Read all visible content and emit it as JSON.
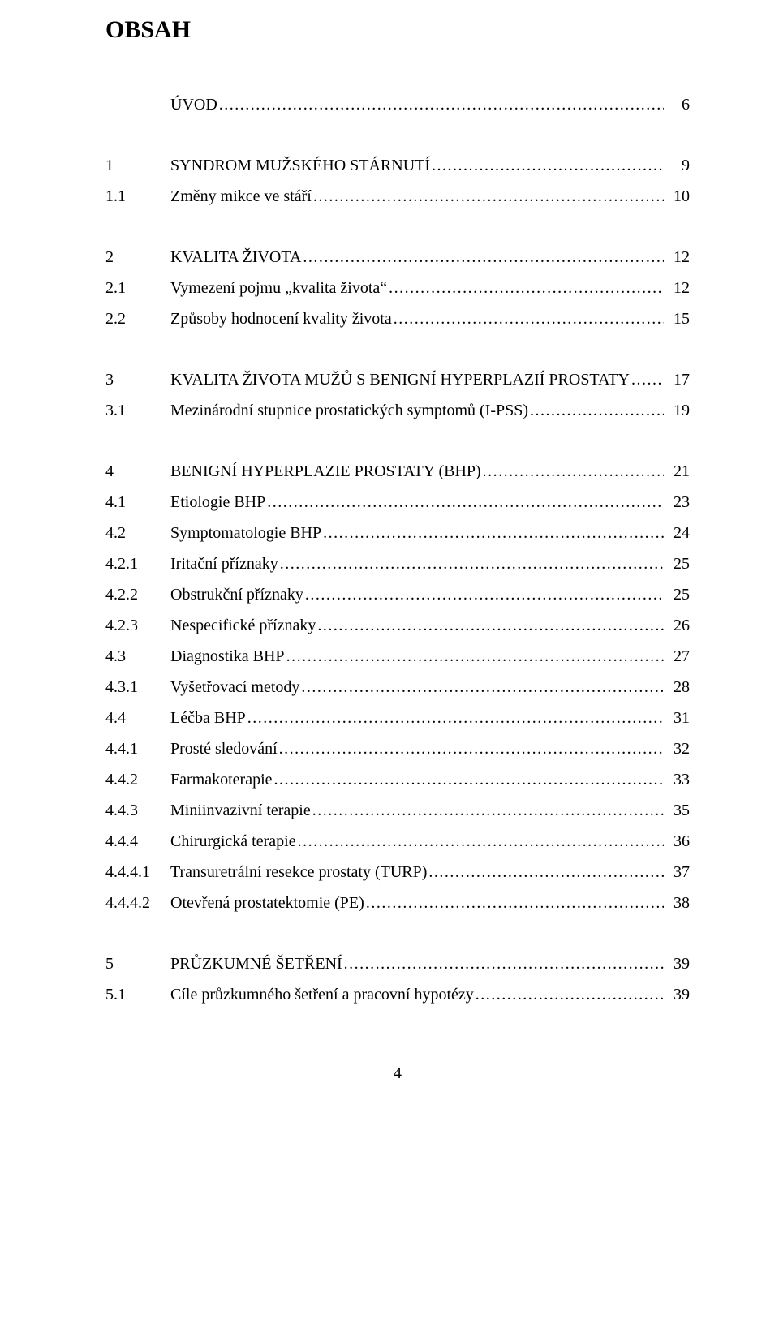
{
  "heading": "OBSAH",
  "footer_page_number": "4",
  "items": [
    {
      "num": "",
      "title": "ÚVOD",
      "page": "6",
      "spacer_after": true
    },
    {
      "num": "1",
      "title": "SYNDROM MUŽSKÉHO STÁRNUTÍ",
      "page": "9",
      "spacer_after": false
    },
    {
      "num": "1.1",
      "title": "Změny mikce ve stáří",
      "page": "10",
      "spacer_after": true
    },
    {
      "num": "2",
      "title": "KVALITA ŽIVOTA",
      "page": "12",
      "spacer_after": false
    },
    {
      "num": "2.1",
      "title": "Vymezení pojmu „kvalita života“",
      "page": "12",
      "spacer_after": false
    },
    {
      "num": "2.2",
      "title": "Způsoby hodnocení kvality života",
      "page": "15",
      "spacer_after": true
    },
    {
      "num": "3",
      "title": "KVALITA ŽIVOTA MUŽŮ S BENIGNÍ HYPERPLAZIÍ PROSTATY",
      "page": "17",
      "spacer_after": false
    },
    {
      "num": "3.1",
      "title": "Mezinárodní stupnice prostatických symptomů (I-PSS)",
      "page": "19",
      "spacer_after": true
    },
    {
      "num": "4",
      "title": "BENIGNÍ HYPERPLAZIE PROSTATY (BHP)",
      "page": "21",
      "spacer_after": false
    },
    {
      "num": "4.1",
      "title": "Etiologie BHP",
      "page": "23",
      "spacer_after": false
    },
    {
      "num": "4.2",
      "title": "Symptomatologie  BHP",
      "page": "24",
      "spacer_after": false
    },
    {
      "num": "4.2.1",
      "title": "Iritační příznaky",
      "page": "25",
      "spacer_after": false
    },
    {
      "num": "4.2.2",
      "title": "Obstrukční příznaky",
      "page": "25",
      "spacer_after": false
    },
    {
      "num": "4.2.3",
      "title": "Nespecifické příznaky",
      "page": "26",
      "spacer_after": false
    },
    {
      "num": "4.3",
      "title": "Diagnostika BHP",
      "page": "27",
      "spacer_after": false
    },
    {
      "num": "4.3.1",
      "title": "Vyšetřovací metody",
      "page": "28",
      "spacer_after": false
    },
    {
      "num": "4.4",
      "title": "Léčba BHP",
      "page": "31",
      "spacer_after": false
    },
    {
      "num": "4.4.1",
      "title": "Prosté sledování",
      "page": "32",
      "spacer_after": false
    },
    {
      "num": "4.4.2",
      "title": "Farmakoterapie",
      "page": "33",
      "spacer_after": false
    },
    {
      "num": "4.4.3",
      "title": "Miniinvazivní terapie",
      "page": "35",
      "spacer_after": false
    },
    {
      "num": "4.4.4",
      "title": "Chirurgická terapie",
      "page": "36",
      "spacer_after": false
    },
    {
      "num": "4.4.4.1",
      "title": "Transuretrální resekce prostaty (TURP)",
      "page": "37",
      "spacer_after": false
    },
    {
      "num": "4.4.4.2",
      "title": "Otevřená prostatektomie (PE)",
      "page": "38",
      "spacer_after": true
    },
    {
      "num": "5",
      "title": "PRŮZKUMNÉ ŠETŘENÍ",
      "page": "39",
      "spacer_after": false
    },
    {
      "num": "5.1",
      "title": "Cíle průzkumného šetření a pracovní hypotézy",
      "page": "39",
      "spacer_after": false
    }
  ]
}
